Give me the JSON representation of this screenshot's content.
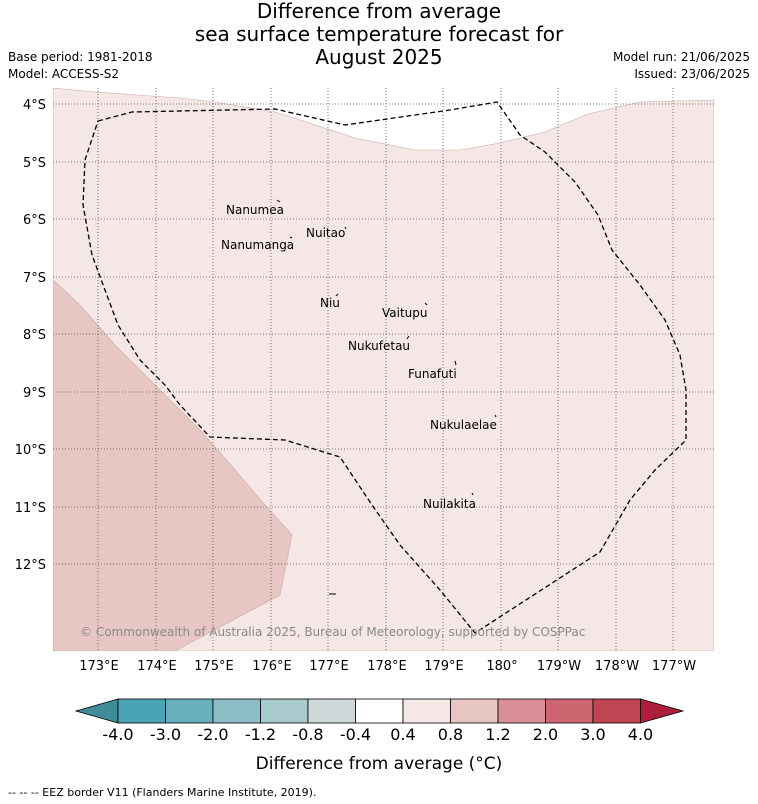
{
  "title": {
    "line1": "Difference from average",
    "line2": "sea surface temperature forecast for",
    "line3": "August 2025"
  },
  "meta": {
    "base_period": "Base period: 1981-2018",
    "model": "Model: ACCESS-S2",
    "model_run": "Model run: 21/06/2025",
    "issued": "Issued: 23/06/2025"
  },
  "map": {
    "lat_labels": [
      "4°S",
      "5°S",
      "6°S",
      "7°S",
      "8°S",
      "9°S",
      "10°S",
      "11°S",
      "12°S"
    ],
    "lon_labels": [
      "173°E",
      "174°E",
      "175°E",
      "176°E",
      "177°E",
      "178°E",
      "179°E",
      "180°",
      "179°W",
      "178°W",
      "177°W"
    ],
    "islands": [
      "Nanumea",
      "Nuitao",
      "Nanumanga",
      "Niu",
      "Vaitupu",
      "Nukufetau",
      "Funafuti",
      "Nukulaelae",
      "Nuilakita"
    ],
    "copyright": "© Commonwealth of Australia 2025, Bureau of Meteorology, supported by COSPPac",
    "colors": {
      "anomaly_0_4_to_0_8": "#f4e7e6",
      "anomaly_0_8_to_1_2": "#e8c6c3",
      "eez_border": "#000000"
    }
  },
  "colorbar": {
    "ticks": [
      "-4.0",
      "-3.0",
      "-2.0",
      "-1.2",
      "-0.8",
      "-0.4",
      "0.4",
      "0.8",
      "1.2",
      "2.0",
      "3.0",
      "4.0"
    ],
    "colors": [
      "#3f8b98",
      "#4aa4b5",
      "#69aebd",
      "#8cbcc6",
      "#a9cacd",
      "#d0d9da",
      "#ffffff",
      "#f4e7e6",
      "#e8c6c3",
      "#d88f96",
      "#cd6570",
      "#c04453",
      "#ac1f3a"
    ],
    "label": "Difference from average (°C)"
  },
  "footer": "-- -- -- EEZ border V11 (Flanders Marine Institute, 2019)."
}
